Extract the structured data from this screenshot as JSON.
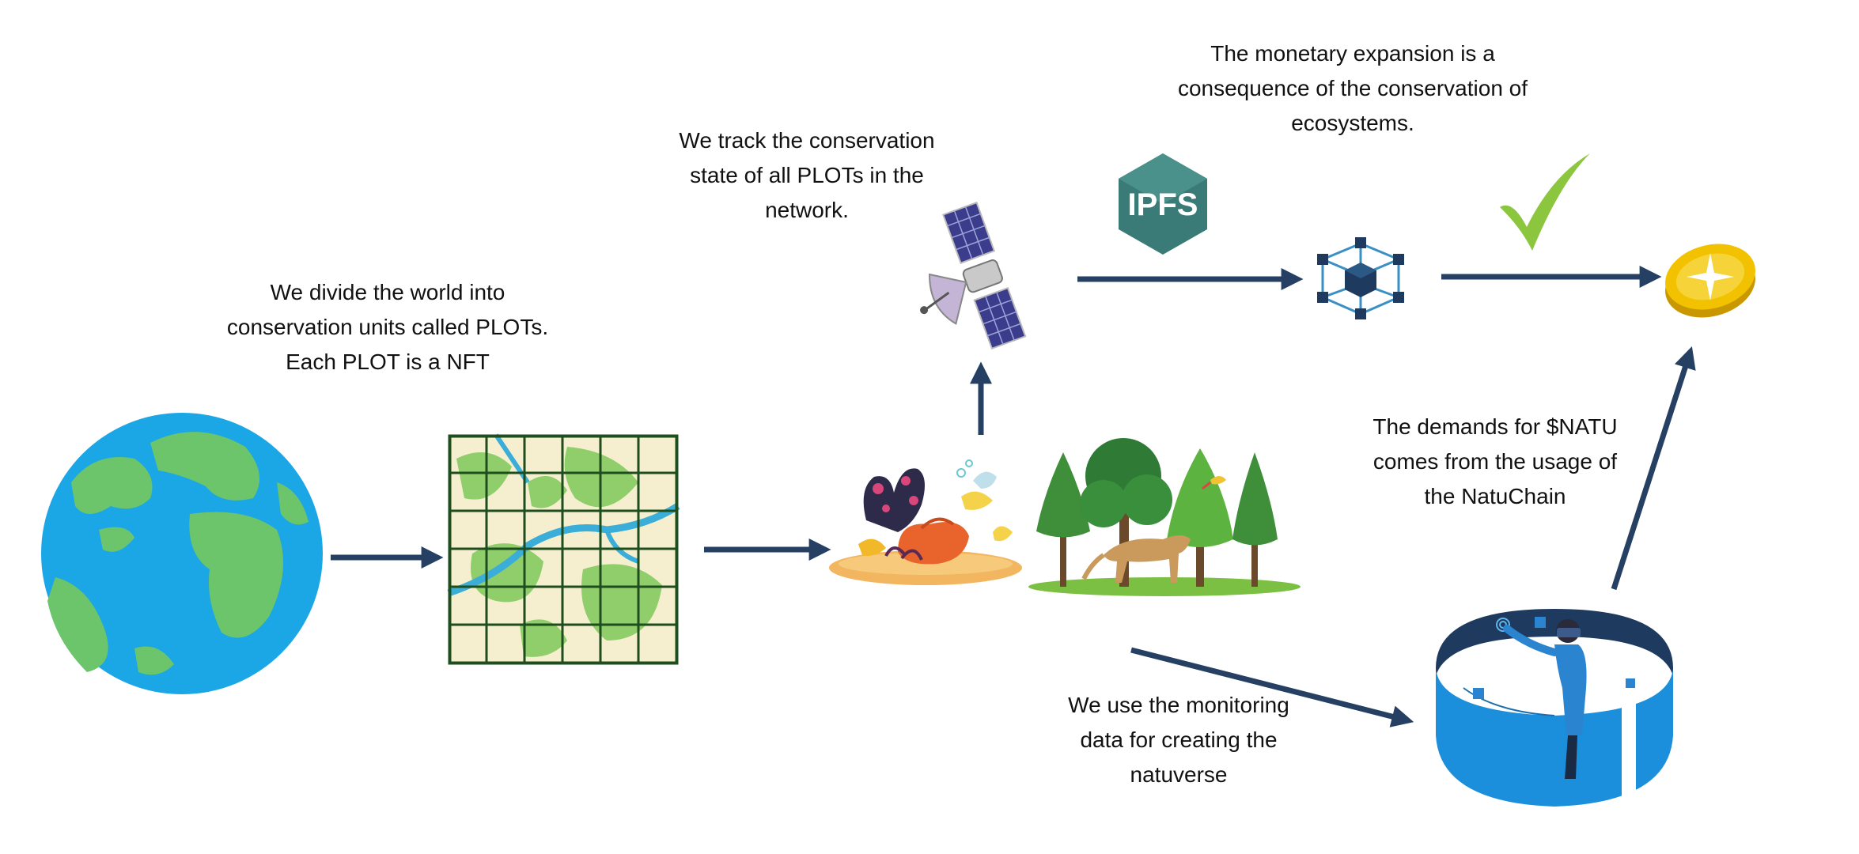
{
  "captions": {
    "divide": "We divide the world into\nconservation units called PLOTs.\nEach PLOT is a NFT",
    "track": "We track the conservation\nstate of all PLOTs in the\nnetwork.",
    "monetary": "The monetary expansion is a\nconsequence of the conservation of\necosystems.",
    "demand": "The demands for $NATU\ncomes from the usage of\nthe NatuChain",
    "natuverse": "We use the monitoring\ndata for creating the\nnatuverse"
  },
  "ipfs_label": "IPFS",
  "icons": {
    "globe": "earth-globe",
    "map": "plot-grid-map",
    "reef": "coral-reef",
    "forest": "forest-with-puma",
    "satellite": "satellite",
    "ipfs": "ipfs-hexagon",
    "blockchain": "blockchain-cubes",
    "check": "checkmark",
    "coin": "gold-coin",
    "vr": "vr-person-in-ring"
  },
  "colors": {
    "arrow": "#264063",
    "ocean": "#1ba6e6",
    "land": "#6cc56b",
    "ipfs": "#3b7b77",
    "check": "#8cc63e",
    "coin": "#f2c200",
    "navy": "#1f3a5f"
  }
}
